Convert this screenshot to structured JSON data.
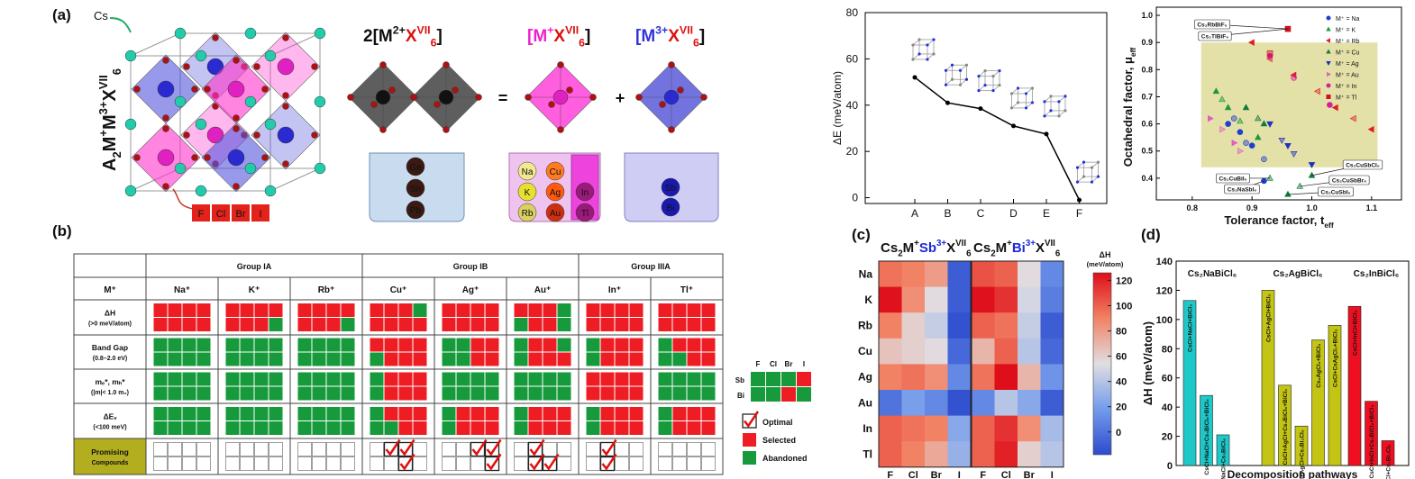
{
  "panel_labels": [
    "(a)",
    "(b)",
    "(c)",
    "(d)"
  ],
  "structure": {
    "cs_label": "Cs",
    "formula": [
      "A",
      "2",
      "M",
      "+",
      "M",
      "3+",
      "X",
      "VII",
      "6"
    ],
    "halides": [
      "F",
      "Cl",
      "Br",
      "I"
    ],
    "bracket_2": [
      "2[M",
      "2+",
      "X",
      "VII",
      "6",
      "]"
    ],
    "bracket_1": [
      "[M",
      "+",
      "X",
      "VII",
      "6",
      "]"
    ],
    "bracket_3": [
      "[M",
      "3+",
      "X",
      "VII",
      "6",
      "]"
    ],
    "equals": "=",
    "plus": "+",
    "divalent": [
      "Ge",
      "Sn",
      "Pb"
    ],
    "monovalent": [
      "Na",
      "Cu",
      "K",
      "Ag",
      "Rb",
      "Au"
    ],
    "monovalent_iiia": [
      "In",
      "Tl"
    ],
    "trivalent": [
      "Sb",
      "Bi"
    ]
  },
  "table": {
    "corner": "M⁺",
    "groups": [
      {
        "name": "Group IA",
        "cations": [
          "Na⁺",
          "K⁺",
          "Rb⁺"
        ]
      },
      {
        "name": "Group IB",
        "cations": [
          "Cu⁺",
          "Ag⁺",
          "Au⁺"
        ]
      },
      {
        "name": "Group IIIA",
        "cations": [
          "In⁺",
          "Tl⁺"
        ]
      }
    ],
    "colors": {
      "R": "#ee1d23",
      "G": "#169a3b"
    },
    "criteria": [
      {
        "label": [
          "ΔH",
          "(>0 meV/atom)"
        ],
        "cells": [
          "RRRR/RRRR",
          "RRRR/RRRG",
          "RRRR/RRRG",
          "RRRG/RRRR",
          "RRRR/RRRR",
          "RRRG/GRRG",
          "RRRR/RRRR",
          "RRRR/RRRR"
        ]
      },
      {
        "label": [
          "Band Gap",
          "(0.8–2.0 eV)"
        ],
        "cells": [
          "GGGG/GGGG",
          "GGGG/GGGG",
          "GGGG/GGGG",
          "RRRR/GRRR",
          "GGRR/GGRR",
          "GRRG/GRRR",
          "GRRR/GRRR",
          "GRRR/GGRR"
        ]
      },
      {
        "label": [
          "mₑ*, mₕ*",
          "(|m|< 1.0 m₀)"
        ],
        "cells": [
          "GGGG/GGGG",
          "GGGG/GGGG",
          "GGGG/GGGG",
          "GRRR/GRRR",
          "GGGG/GGGG",
          "GGGG/GGGG",
          "RRRR/RRRR",
          "GGGG/GGGG"
        ]
      },
      {
        "label": [
          "ΔEᵥ",
          "(<100 meV)"
        ],
        "cells": [
          "GGGG/GGGG",
          "GGGG/GGGG",
          "GGGG/GGGG",
          "GRRR/GGRR",
          "GRRR/GRRR",
          "GRRR/GRRR",
          "GRRR/GRRR",
          "GRRR/GRRR"
        ]
      }
    ],
    "promising": {
      "label": [
        "Promising",
        "Compounds"
      ],
      "cells": [
        "----/----",
        "----/----",
        "----/----",
        "-CC-/--C-",
        "--CC/---C",
        "-C--/-CC-",
        "-C--/-C--",
        "----/----"
      ]
    },
    "legend": {
      "halides": [
        "F",
        "Cl",
        "Br",
        "I"
      ],
      "sites": [
        "Sb",
        "Bi"
      ],
      "sample": "GGGR/GGRG",
      "items": [
        "Optimal",
        "Selected",
        "Abandoned"
      ]
    }
  },
  "chart_data": [
    {
      "type": "line",
      "ylabel": "ΔE (meV/atom)",
      "categories": [
        "A",
        "B",
        "C",
        "D",
        "E",
        "F"
      ],
      "values": [
        52,
        41,
        38.5,
        31,
        27.5,
        -1
      ],
      "color": "#000000",
      "ylim": [
        -2.5,
        80
      ],
      "yticks": [
        0,
        20,
        40,
        60,
        80
      ]
    },
    {
      "type": "scatter",
      "xlabel": [
        "Tolerance factor, t",
        "eff"
      ],
      "ylabel": [
        "Octahedral factor, μ",
        "eff"
      ],
      "xlim": [
        0.74,
        1.15
      ],
      "ylim": [
        0.32,
        1.03
      ],
      "xticks": [
        0.8,
        0.9,
        {
          "value": 1,
          "label": "1.0"
        },
        1.1
      ],
      "yticks": [
        0.4,
        0.5,
        0.6,
        0.7,
        0.8,
        0.9,
        {
          "value": 1,
          "label": "1.0"
        }
      ],
      "region": {
        "x": [
          0.815,
          1.11
        ],
        "y": [
          0.44,
          0.9
        ],
        "color": "#e4e1a8"
      },
      "series": [
        {
          "name": "M⁺ = Na",
          "color": "#1f3fd0",
          "marker": "circle",
          "x": [
            0.86,
            0.87,
            0.88,
            0.89,
            0.9,
            0.92,
            0.92
          ],
          "y": [
            0.6,
            0.62,
            0.57,
            0.53,
            0.52,
            0.47,
            0.39
          ]
        },
        {
          "name": "M⁺ = K",
          "color": "#1a9a3a",
          "marker": "triangle-up",
          "x": [
            0.84,
            0.85,
            0.86,
            0.88,
            0.91
          ],
          "y": [
            0.72,
            0.69,
            0.66,
            0.61,
            0.55
          ]
        },
        {
          "name": "M⁺ = Rb",
          "color": "#e02020",
          "marker": "triangle-left",
          "x": [
            0.9,
            0.93,
            0.97,
            1.01,
            1.04,
            1.07,
            1.1
          ],
          "y": [
            0.9,
            0.84,
            0.78,
            0.72,
            0.66,
            0.62,
            0.58
          ]
        },
        {
          "name": "M⁺ = Cu",
          "color": "#0f7a3a",
          "marker": "triangle-up",
          "x": [
            0.89,
            0.91,
            0.92,
            0.93,
            0.96,
            0.98,
            1.0
          ],
          "y": [
            0.66,
            0.62,
            0.6,
            0.4,
            0.34,
            0.37,
            0.41
          ]
        },
        {
          "name": "M⁺ = Ag",
          "color": "#2030c0",
          "marker": "triangle-down",
          "x": [
            0.93,
            0.95,
            0.96,
            0.97,
            1.0
          ],
          "y": [
            0.6,
            0.54,
            0.52,
            0.49,
            0.45
          ]
        },
        {
          "name": "M⁺ = Au",
          "color": "#e060c0",
          "marker": "triangle-right",
          "x": [
            0.83,
            0.85,
            0.87,
            0.88
          ],
          "y": [
            0.62,
            0.58,
            0.53,
            0.5
          ]
        },
        {
          "name": "M⁺ = In",
          "color": "#d020a0",
          "marker": "circle",
          "x": [
            0.93,
            0.97,
            1.03
          ],
          "y": [
            0.85,
            0.77,
            0.67
          ]
        },
        {
          "name": "M⁺ = Tl",
          "color": "#d01020",
          "marker": "square",
          "x": [
            0.96,
            0.93
          ],
          "y": [
            0.95,
            0.86
          ]
        }
      ],
      "annotations": [
        {
          "text": "Cs₂RbBiF₆",
          "x": 0.96,
          "y": 0.95
        },
        {
          "text": "Cs₂TlBiF₆",
          "x": 0.96,
          "y": 0.95
        },
        {
          "text": "Cs₂CuBiI₆",
          "x": 0.93,
          "y": 0.4
        },
        {
          "text": "Cs₂NaSbI₆",
          "x": 0.92,
          "y": 0.39
        },
        {
          "text": "Cs₂CuSbCl₆",
          "x": 1.0,
          "y": 0.41
        },
        {
          "text": "Cs₂CuSbBr₆",
          "x": 0.98,
          "y": 0.37
        },
        {
          "text": "Cs₂CuSbI₆",
          "x": 0.96,
          "y": 0.34
        }
      ]
    },
    {
      "type": "heatmap",
      "rows": [
        "Na",
        "K",
        "Rb",
        "Cu",
        "Ag",
        "Au",
        "In",
        "Tl"
      ],
      "columns": [
        "F",
        "Cl",
        "Br",
        "I"
      ],
      "series": [
        {
          "name": [
            "Cs",
            "2",
            "M",
            "+",
            "Sb",
            "3+",
            "X",
            "VII",
            "6"
          ],
          "values": [
            [
              95,
              90,
              80,
              -10
            ],
            [
              125,
              85,
              55,
              -10
            ],
            [
              90,
              60,
              45,
              -15
            ],
            [
              65,
              60,
              55,
              -5
            ],
            [
              90,
              95,
              85,
              10
            ],
            [
              0,
              20,
              10,
              -15
            ],
            [
              100,
              95,
              90,
              25
            ],
            [
              100,
              90,
              75,
              30
            ]
          ]
        },
        {
          "name": [
            "Cs",
            "2",
            "M",
            "+",
            "Bi",
            "3+",
            "X",
            "VII",
            "6"
          ],
          "values": [
            [
              105,
              100,
              55,
              10
            ],
            [
              125,
              115,
              50,
              5
            ],
            [
              100,
              95,
              45,
              -10
            ],
            [
              70,
              100,
              40,
              -5
            ],
            [
              95,
              130,
              70,
              15
            ],
            [
              10,
              40,
              25,
              -10
            ],
            [
              100,
              115,
              85,
              35
            ],
            [
              100,
              120,
              60,
              40
            ]
          ]
        }
      ],
      "colorbar": {
        "title": [
          "ΔH",
          "(meV/atom)"
        ],
        "clim": [
          -18,
          126
        ],
        "ticks": [
          0,
          20,
          40,
          60,
          80,
          100,
          120
        ]
      }
    },
    {
      "type": "bar",
      "ylabel": "ΔH (meV/atom)",
      "xlabel": "Decomposition pathways",
      "ylim": [
        0,
        140
      ],
      "yticks": [
        0,
        20,
        40,
        60,
        80,
        100,
        120,
        140
      ],
      "series": [
        {
          "name": "Cs₂NaBiCl₆",
          "color": "#1fc8c8",
          "values": [
            113,
            48,
            21
          ],
          "categories": [
            "CsCl+NaCl+BiCl₃",
            "CsCl+NaCl+Cs₃BiCl₆+BiCl₃",
            "CsCl+NaCl+Cs₃BiCl₆"
          ]
        },
        {
          "name": "Cs₂AgBiCl₆",
          "color": "#c4c414",
          "values": [
            120,
            55,
            27,
            86,
            96
          ],
          "categories": [
            "CsCl+AgCl+BiCl₃",
            "CsCl+AgCl+Cs₃BiCl₆+BiCl₃",
            "CsCl+AgCl+Cs₃Bi₂Cl₉",
            "Cs₂AgCl₃+BiCl₃",
            "CsCl+CsAgCl₂+BiCl₃"
          ]
        },
        {
          "name": "Cs₂InBiCl₆",
          "color": "#ee1020",
          "values": [
            109,
            44,
            17
          ],
          "categories": [
            "CsCl+InCl+BiCl₃",
            "CsCl+InCl+Cs₃BiCl₆+BiCl₃",
            "CsCl+InCl+Cs₃Bi₂Cl₉"
          ]
        }
      ]
    }
  ]
}
